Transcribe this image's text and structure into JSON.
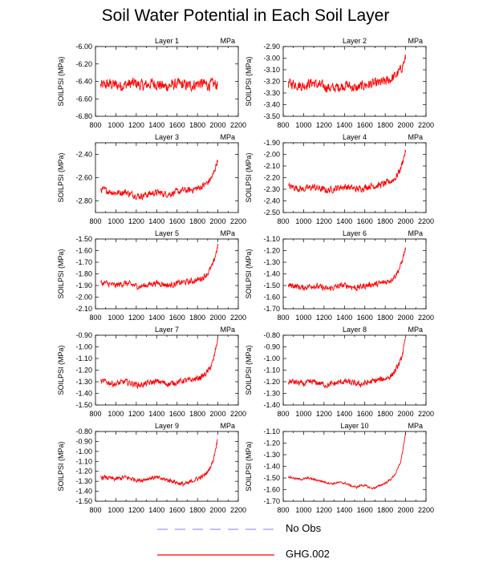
{
  "title": "Soil Water Potential in Each Soil Layer",
  "colors": {
    "series": "#ff0000",
    "no_obs": "#9a9aee",
    "axis": "#000000"
  },
  "legend": [
    {
      "label": "No Obs",
      "style": "dashed",
      "color": "#9a9aee"
    },
    {
      "label": "GHG.002",
      "style": "solid",
      "color": "#ff0000"
    }
  ],
  "chart_data": [
    {
      "type": "line",
      "title": "Layer 1",
      "unit_label": "MPa",
      "ylabel": "SOILPSI  (MPa)",
      "xlim": [
        800,
        2200
      ],
      "xticks": [
        800,
        1000,
        1200,
        1400,
        1600,
        1800,
        2000,
        2200
      ],
      "ylim": [
        -6.8,
        -6.0
      ],
      "yticks": [
        -6.8,
        -6.6,
        -6.4,
        -6.2,
        -6.0
      ],
      "ytick_decimals": 2,
      "series": [
        {
          "name": "GHG.002",
          "x_range": [
            850,
            2000
          ],
          "values": [
            -6.45,
            -6.44,
            -6.43,
            -6.44,
            -6.45,
            -6.44,
            -6.43,
            -6.42,
            -6.44,
            -6.45,
            -6.43,
            -6.42,
            -6.44,
            -6.46,
            -6.45,
            -6.44,
            -6.43,
            -6.44,
            -6.45,
            -6.44,
            -6.42,
            -6.43,
            -6.44,
            -6.43,
            -6.44
          ],
          "noise": 0.09
        }
      ]
    },
    {
      "type": "line",
      "title": "Layer 2",
      "unit_label": "MPa",
      "ylabel": "SOILPSI  (MPa)",
      "xlim": [
        800,
        2200
      ],
      "xticks": [
        800,
        1000,
        1200,
        1400,
        1600,
        1800,
        2000,
        2200
      ],
      "ylim": [
        -3.5,
        -2.9
      ],
      "yticks": [
        -3.5,
        -3.4,
        -3.3,
        -3.2,
        -3.1,
        -3.0,
        -2.9
      ],
      "ytick_decimals": 2,
      "series": [
        {
          "name": "GHG.002",
          "x_range": [
            850,
            2000
          ],
          "values": [
            -3.22,
            -3.22,
            -3.23,
            -3.24,
            -3.22,
            -3.21,
            -3.23,
            -3.24,
            -3.25,
            -3.26,
            -3.25,
            -3.24,
            -3.23,
            -3.25,
            -3.26,
            -3.24,
            -3.23,
            -3.22,
            -3.22,
            -3.21,
            -3.2,
            -3.18,
            -3.15,
            -3.1,
            -3.0
          ],
          "noise": 0.06
        }
      ]
    },
    {
      "type": "line",
      "title": "Layer 3",
      "unit_label": "MPa",
      "ylabel": "SOILPSI  (MPa)",
      "xlim": [
        800,
        2200
      ],
      "xticks": [
        800,
        1000,
        1200,
        1400,
        1600,
        1800,
        2000,
        2200
      ],
      "ylim": [
        -2.9,
        -2.3
      ],
      "yticks": [
        -2.8,
        -2.6,
        -2.4
      ],
      "ytick_decimals": 2,
      "series": [
        {
          "name": "GHG.002",
          "x_range": [
            850,
            2000
          ],
          "values": [
            -2.7,
            -2.71,
            -2.72,
            -2.73,
            -2.73,
            -2.72,
            -2.74,
            -2.75,
            -2.76,
            -2.75,
            -2.74,
            -2.73,
            -2.73,
            -2.74,
            -2.74,
            -2.73,
            -2.72,
            -2.71,
            -2.71,
            -2.7,
            -2.69,
            -2.67,
            -2.64,
            -2.58,
            -2.44
          ],
          "noise": 0.04
        }
      ]
    },
    {
      "type": "line",
      "title": "Layer 4",
      "unit_label": "MPa",
      "ylabel": "SOILPSI  (MPa)",
      "xlim": [
        800,
        2200
      ],
      "xticks": [
        800,
        1000,
        1200,
        1400,
        1600,
        1800,
        2000,
        2200
      ],
      "ylim": [
        -2.5,
        -1.9
      ],
      "yticks": [
        -2.5,
        -2.4,
        -2.3,
        -2.2,
        -2.1,
        -2.0,
        -1.9
      ],
      "ytick_decimals": 2,
      "series": [
        {
          "name": "GHG.002",
          "x_range": [
            850,
            2000
          ],
          "values": [
            -2.28,
            -2.28,
            -2.29,
            -2.3,
            -2.29,
            -2.28,
            -2.29,
            -2.3,
            -2.31,
            -2.3,
            -2.29,
            -2.28,
            -2.28,
            -2.29,
            -2.3,
            -2.29,
            -2.28,
            -2.27,
            -2.27,
            -2.26,
            -2.25,
            -2.23,
            -2.2,
            -2.12,
            -1.97
          ],
          "noise": 0.04
        }
      ]
    },
    {
      "type": "line",
      "title": "Layer 5",
      "unit_label": "MPa",
      "ylabel": "SOILPSI  (MPa)",
      "xlim": [
        800,
        2200
      ],
      "xticks": [
        800,
        1000,
        1200,
        1400,
        1600,
        1800,
        2000,
        2200
      ],
      "ylim": [
        -2.1,
        -1.5
      ],
      "yticks": [
        -2.1,
        -2.0,
        -1.9,
        -1.8,
        -1.7,
        -1.6,
        -1.5
      ],
      "ytick_decimals": 2,
      "series": [
        {
          "name": "GHG.002",
          "x_range": [
            850,
            2000
          ],
          "values": [
            -1.88,
            -1.88,
            -1.89,
            -1.9,
            -1.89,
            -1.88,
            -1.89,
            -1.9,
            -1.91,
            -1.9,
            -1.89,
            -1.88,
            -1.88,
            -1.89,
            -1.9,
            -1.89,
            -1.88,
            -1.87,
            -1.87,
            -1.86,
            -1.85,
            -1.83,
            -1.79,
            -1.72,
            -1.56
          ],
          "noise": 0.035
        }
      ]
    },
    {
      "type": "line",
      "title": "Layer 6",
      "unit_label": "MPa",
      "ylabel": "SOILPSI  (MPa)",
      "xlim": [
        800,
        2200
      ],
      "xticks": [
        800,
        1000,
        1200,
        1400,
        1600,
        1800,
        2000,
        2200
      ],
      "ylim": [
        -1.7,
        -1.1
      ],
      "yticks": [
        -1.7,
        -1.6,
        -1.5,
        -1.4,
        -1.3,
        -1.2,
        -1.1
      ],
      "ytick_decimals": 2,
      "series": [
        {
          "name": "GHG.002",
          "x_range": [
            850,
            2000
          ],
          "values": [
            -1.5,
            -1.5,
            -1.51,
            -1.52,
            -1.51,
            -1.5,
            -1.51,
            -1.52,
            -1.53,
            -1.52,
            -1.51,
            -1.5,
            -1.5,
            -1.51,
            -1.52,
            -1.51,
            -1.5,
            -1.49,
            -1.49,
            -1.48,
            -1.47,
            -1.45,
            -1.41,
            -1.33,
            -1.18
          ],
          "noise": 0.035
        }
      ]
    },
    {
      "type": "line",
      "title": "Layer 7",
      "unit_label": "MPa",
      "ylabel": "SOILPSI  (MPa)",
      "xlim": [
        800,
        2200
      ],
      "xticks": [
        800,
        1000,
        1200,
        1400,
        1600,
        1800,
        2000,
        2200
      ],
      "ylim": [
        -1.5,
        -0.9
      ],
      "yticks": [
        -1.5,
        -1.4,
        -1.3,
        -1.2,
        -1.1,
        -1.0,
        -0.9
      ],
      "ytick_decimals": 2,
      "series": [
        {
          "name": "GHG.002",
          "x_range": [
            850,
            2000
          ],
          "values": [
            -1.3,
            -1.3,
            -1.31,
            -1.32,
            -1.31,
            -1.3,
            -1.31,
            -1.32,
            -1.33,
            -1.32,
            -1.31,
            -1.3,
            -1.3,
            -1.31,
            -1.32,
            -1.31,
            -1.3,
            -1.29,
            -1.29,
            -1.28,
            -1.27,
            -1.25,
            -1.21,
            -1.13,
            -0.93
          ],
          "noise": 0.035
        }
      ]
    },
    {
      "type": "line",
      "title": "Layer 8",
      "unit_label": "MPa",
      "ylabel": "SOILPSI  (MPa)",
      "xlim": [
        800,
        2200
      ],
      "xticks": [
        800,
        1000,
        1200,
        1400,
        1600,
        1800,
        2000,
        2200
      ],
      "ylim": [
        -1.4,
        -0.8
      ],
      "yticks": [
        -1.4,
        -1.3,
        -1.2,
        -1.1,
        -1.0,
        -0.9,
        -0.8
      ],
      "ytick_decimals": 2,
      "series": [
        {
          "name": "GHG.002",
          "x_range": [
            850,
            2000
          ],
          "values": [
            -1.2,
            -1.2,
            -1.21,
            -1.22,
            -1.21,
            -1.2,
            -1.21,
            -1.22,
            -1.23,
            -1.22,
            -1.21,
            -1.2,
            -1.2,
            -1.21,
            -1.22,
            -1.22,
            -1.21,
            -1.2,
            -1.19,
            -1.18,
            -1.17,
            -1.15,
            -1.1,
            -1.02,
            -0.84
          ],
          "noise": 0.035
        }
      ]
    },
    {
      "type": "line",
      "title": "Layer 9",
      "unit_label": "MPa",
      "ylabel": "SOILPSI  (MPa)",
      "xlim": [
        800,
        2200
      ],
      "xticks": [
        800,
        1000,
        1200,
        1400,
        1600,
        1800,
        2000,
        2200
      ],
      "ylim": [
        -1.5,
        -0.8
      ],
      "yticks": [
        -1.5,
        -1.4,
        -1.3,
        -1.2,
        -1.1,
        -1.0,
        -0.9,
        -0.8
      ],
      "ytick_decimals": 2,
      "series": [
        {
          "name": "GHG.002",
          "x_range": [
            850,
            2000
          ],
          "values": [
            -1.26,
            -1.26,
            -1.27,
            -1.28,
            -1.27,
            -1.26,
            -1.27,
            -1.28,
            -1.29,
            -1.28,
            -1.27,
            -1.26,
            -1.27,
            -1.28,
            -1.29,
            -1.3,
            -1.32,
            -1.33,
            -1.32,
            -1.29,
            -1.27,
            -1.25,
            -1.2,
            -1.1,
            -0.86
          ],
          "noise": 0.03
        }
      ]
    },
    {
      "type": "line",
      "title": "Layer 10",
      "unit_label": "MPa",
      "ylabel": "SOILPSI  (MPa)",
      "xlim": [
        800,
        2200
      ],
      "xticks": [
        800,
        1000,
        1200,
        1400,
        1600,
        1800,
        2000,
        2200
      ],
      "ylim": [
        -1.7,
        -1.1
      ],
      "yticks": [
        -1.7,
        -1.6,
        -1.5,
        -1.4,
        -1.3,
        -1.2,
        -1.1
      ],
      "ytick_decimals": 2,
      "series": [
        {
          "name": "GHG.002",
          "x_range": [
            850,
            2000
          ],
          "values": [
            -1.49,
            -1.5,
            -1.51,
            -1.51,
            -1.5,
            -1.51,
            -1.52,
            -1.53,
            -1.54,
            -1.55,
            -1.54,
            -1.54,
            -1.55,
            -1.57,
            -1.58,
            -1.56,
            -1.57,
            -1.59,
            -1.58,
            -1.56,
            -1.54,
            -1.51,
            -1.46,
            -1.36,
            -1.12
          ],
          "noise": 0.012
        }
      ]
    }
  ]
}
